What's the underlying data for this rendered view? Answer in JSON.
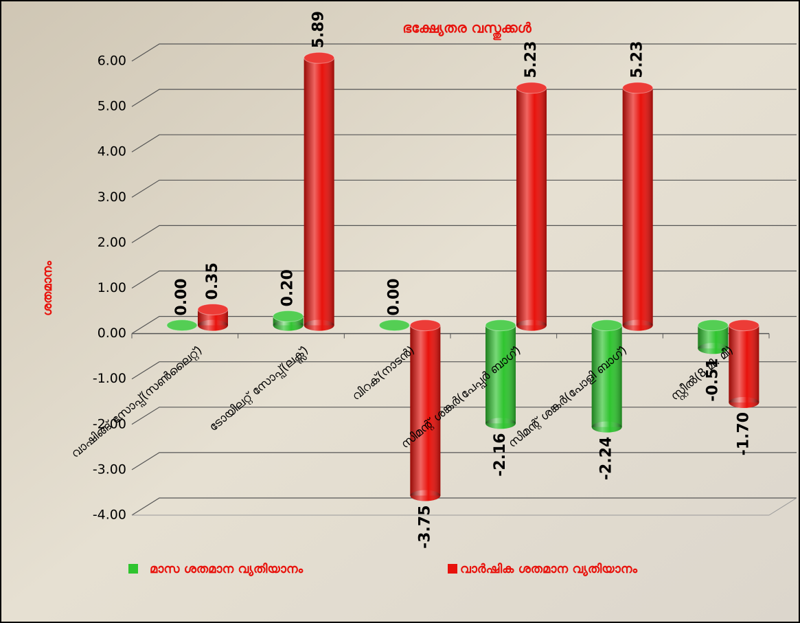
{
  "chart_data": {
    "type": "bar3d",
    "title": "ഭക്ഷ്യേതര വസ്തുക്കൾ",
    "y_label": "ശതമാനം",
    "categories": [
      "വാഷിങ്ങ് സോപ്പ്(സൺലൈറ്റ്)",
      "ടോയിലറ്റ് സോപ്പ്(ലക്സ്)",
      "വിറക്(നാടൻ)",
      "സിമന്റ് ശങ്കർ(പേപ്പർ ബാഗ്)",
      "സിമന്റ് ശങ്കർ(പോളി ബാഗ്)",
      "സ്റ്റീൽ(8 മി. മീ)"
    ],
    "series": [
      {
        "name": "മാസ ശതമാന വ്യതിയാനം",
        "color": "#2fc42f",
        "values": [
          0,
          0.2,
          0,
          -2.16,
          -2.24,
          -0.51
        ],
        "value_labels": [
          "0.00",
          "0.20",
          "0.00",
          "-2.16",
          "-2.24",
          "-0.51"
        ]
      },
      {
        "name": "വാർഷിക  ശതമാന വ്യതിയാനം",
        "color": "#e8120c",
        "values": [
          0.35,
          5.89,
          -3.75,
          5.23,
          5.23,
          -1.7
        ],
        "value_labels": [
          "0.35",
          "5.89",
          "-3.75",
          "5.23",
          "5.23",
          "-1.70"
        ]
      }
    ],
    "ylim": [
      -4,
      6
    ],
    "yticks": [
      {
        "value": -4,
        "label": "-4.00"
      },
      {
        "value": -3,
        "label": "-3.00"
      },
      {
        "value": -2,
        "label": "-2.00"
      },
      {
        "value": -1,
        "label": "-1.00"
      },
      {
        "value": 0,
        "label": "0.00"
      },
      {
        "value": 1,
        "label": "1.00"
      },
      {
        "value": 2,
        "label": "2.00"
      },
      {
        "value": 3,
        "label": "3.00"
      },
      {
        "value": 4,
        "label": "4.00"
      },
      {
        "value": 5,
        "label": "5.00"
      },
      {
        "value": 6,
        "label": "6.00"
      }
    ],
    "grid": true
  }
}
